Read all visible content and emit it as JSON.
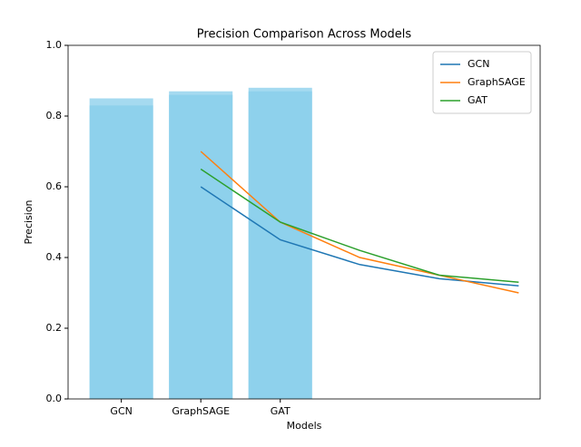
{
  "chart_data": {
    "type": "bar_line",
    "title": "Precision Comparison Across Models",
    "xlabel": "Models",
    "ylabel": "Precision",
    "categories": [
      "GCN",
      "GraphSAGE",
      "GAT"
    ],
    "bars": [
      {
        "color": "#87ceeb",
        "values": [
          0.85,
          0.87,
          0.88
        ]
      },
      {
        "color": "#87ceeb",
        "values": [
          0.83,
          0.86,
          0.87
        ]
      }
    ],
    "x": [
      1,
      2,
      3,
      4,
      5
    ],
    "series": [
      {
        "name": "GCN",
        "color": "#1f77b4",
        "values": [
          0.6,
          0.45,
          0.38,
          0.34,
          0.32
        ]
      },
      {
        "name": "GraphSAGE",
        "color": "#ff7f0e",
        "values": [
          0.7,
          0.5,
          0.4,
          0.35,
          0.3
        ]
      },
      {
        "name": "GAT",
        "color": "#2ca02c",
        "values": [
          0.65,
          0.5,
          0.42,
          0.35,
          0.33
        ]
      }
    ],
    "xlim": [
      -0.67,
      5.27
    ],
    "ylim": [
      0,
      1
    ],
    "yticks": [
      {
        "value": 0,
        "label": "0.0"
      },
      {
        "value": 0.2,
        "label": "0.2"
      },
      {
        "value": 0.4,
        "label": "0.4"
      },
      {
        "value": 0.6,
        "label": "0.6"
      },
      {
        "value": 0.8,
        "label": "0.8"
      },
      {
        "value": 1,
        "label": "1.0"
      }
    ],
    "legend": "upper right"
  }
}
